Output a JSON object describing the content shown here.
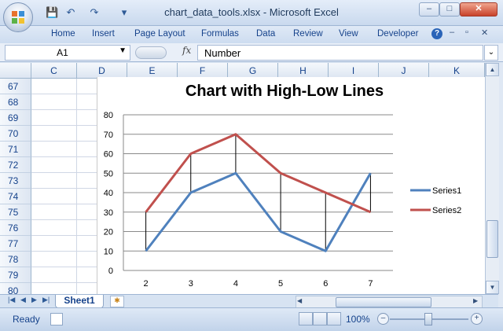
{
  "window": {
    "title": "chart_data_tools.xlsx - Microsoft Excel",
    "controls": [
      "–",
      "□",
      "✕"
    ]
  },
  "quick_access": {
    "save": "💾",
    "undo": "↶",
    "redo": "↷",
    "customize": "▾"
  },
  "ribbon": {
    "tabs": [
      "Home",
      "Insert",
      "Page Layout",
      "Formulas",
      "Data",
      "Review",
      "View",
      "Developer"
    ],
    "help": "?"
  },
  "formula_bar": {
    "name_box": "A1",
    "fx": "fx",
    "formula": "Number"
  },
  "grid": {
    "columns": [
      "C",
      "D",
      "E",
      "F",
      "G",
      "H",
      "I",
      "J",
      "K"
    ],
    "rows": [
      "67",
      "68",
      "69",
      "70",
      "71",
      "72",
      "73",
      "74",
      "75",
      "76",
      "77",
      "78",
      "79",
      "80"
    ]
  },
  "chart_data": {
    "type": "line",
    "title": "Chart with High-Low Lines",
    "categories": [
      "2",
      "3",
      "4",
      "5",
      "6",
      "7"
    ],
    "series": [
      {
        "name": "Series1",
        "values": [
          10,
          40,
          50,
          20,
          10,
          50
        ],
        "color": "#4f81bd"
      },
      {
        "name": "Series2",
        "values": [
          30,
          60,
          70,
          50,
          40,
          30
        ],
        "color": "#c0504d"
      }
    ],
    "high_low_lines": true,
    "ylim": [
      0,
      80
    ],
    "yticks": [
      "0",
      "10",
      "20",
      "30",
      "40",
      "50",
      "60",
      "70",
      "80"
    ],
    "grid": true,
    "legend": "right"
  },
  "sheets": {
    "active": "Sheet1"
  },
  "status": {
    "text": "Ready",
    "zoom": "100%"
  }
}
